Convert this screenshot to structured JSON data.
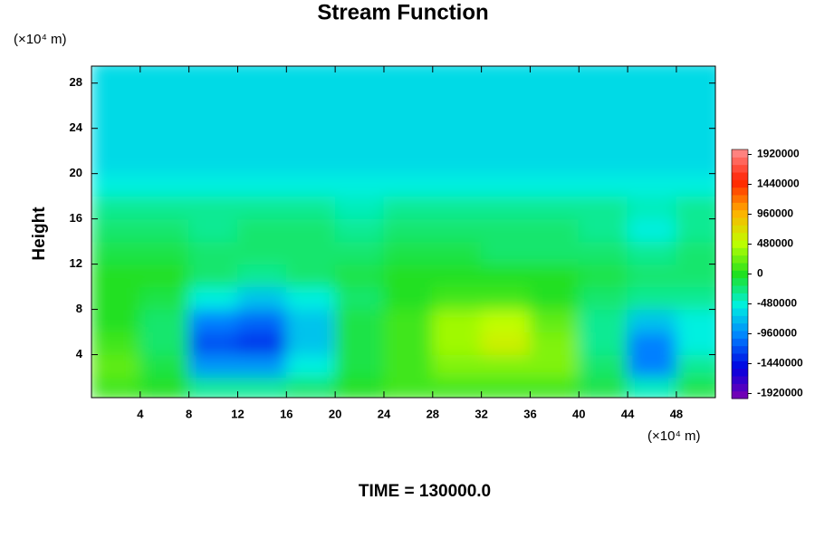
{
  "chart_data": {
    "type": "contour",
    "title": "Stream Function",
    "y_unit": "(×10⁴ m)",
    "x_unit": "(×10⁴ m)",
    "y_label": "Height",
    "footer": "TIME = 130000.0",
    "xlim": [
      0,
      51.2
    ],
    "ylim": [
      0.2,
      29.5
    ],
    "xticks": [
      4,
      8,
      12,
      16,
      20,
      24,
      28,
      32,
      36,
      40,
      44,
      48
    ],
    "yticks": [
      4,
      8,
      12,
      16,
      20,
      24,
      28
    ],
    "x": [
      2,
      6,
      10,
      14,
      18,
      22,
      26,
      30,
      34,
      38,
      42,
      46,
      50
    ],
    "y": [
      1,
      3,
      5,
      7,
      9,
      11,
      13,
      15,
      17,
      19,
      21,
      23,
      25,
      27,
      29
    ],
    "z": [
      [
        100000,
        0,
        -300000,
        -300000,
        -200000,
        0,
        100000,
        100000,
        100000,
        100000,
        -100000,
        -400000,
        -100000
      ],
      [
        200000,
        -100000,
        -900000,
        -900000,
        -500000,
        -100000,
        100000,
        300000,
        300000,
        300000,
        -200000,
        -1000000,
        -300000
      ],
      [
        100000,
        -200000,
        -1200000,
        -1300000,
        -700000,
        -100000,
        100000,
        400000,
        600000,
        300000,
        -300000,
        -1000000,
        -500000
      ],
      [
        0,
        -200000,
        -1000000,
        -1100000,
        -700000,
        -100000,
        100000,
        400000,
        500000,
        200000,
        -300000,
        -700000,
        -500000
      ],
      [
        0,
        -100000,
        -500000,
        -700000,
        -500000,
        -200000,
        0,
        100000,
        100000,
        0,
        -200000,
        -300000,
        -300000
      ],
      [
        0,
        0,
        -200000,
        -300000,
        -200000,
        -100000,
        0,
        0,
        0,
        0,
        -100000,
        -200000,
        -200000
      ],
      [
        -100000,
        -100000,
        -200000,
        -200000,
        -200000,
        -200000,
        -100000,
        -100000,
        -200000,
        -200000,
        -200000,
        -300000,
        -200000
      ],
      [
        -200000,
        -200000,
        -300000,
        -200000,
        -200000,
        -300000,
        -200000,
        -200000,
        -200000,
        -200000,
        -300000,
        -500000,
        -300000
      ],
      [
        -300000,
        -300000,
        -300000,
        -300000,
        -300000,
        -400000,
        -300000,
        -300000,
        -300000,
        -300000,
        -300000,
        -400000,
        -300000
      ],
      [
        -500000,
        -500000,
        -500000,
        -500000,
        -500000,
        -500000,
        -500000,
        -500000,
        -500000,
        -500000,
        -500000,
        -500000,
        -500000
      ],
      [
        -600000,
        -600000,
        -600000,
        -600000,
        -600000,
        -600000,
        -600000,
        -600000,
        -600000,
        -600000,
        -600000,
        -600000,
        -600000
      ],
      [
        -600000,
        -600000,
        -600000,
        -600000,
        -600000,
        -600000,
        -600000,
        -600000,
        -600000,
        -600000,
        -600000,
        -600000,
        -600000
      ],
      [
        -600000,
        -600000,
        -600000,
        -600000,
        -600000,
        -600000,
        -600000,
        -600000,
        -600000,
        -600000,
        -600000,
        -600000,
        -600000
      ],
      [
        -600000,
        -600000,
        -600000,
        -600000,
        -600000,
        -600000,
        -600000,
        -600000,
        -600000,
        -600000,
        -600000,
        -600000,
        -600000
      ],
      [
        -600000,
        -600000,
        -600000,
        -600000,
        -600000,
        -600000,
        -600000,
        -600000,
        -600000,
        -600000,
        -600000,
        -600000,
        -600000
      ]
    ],
    "clim": [
      -2000000,
      2000000
    ],
    "colormap": [
      "#8000b0",
      "#0000e0",
      "#0080ff",
      "#00f0e0",
      "#20e020",
      "#c0ff00",
      "#ffb000",
      "#ff2000",
      "#ff9090"
    ],
    "colorbar_ticks": [
      1920000,
      1440000,
      960000,
      480000,
      0,
      -480000,
      -960000,
      -1440000,
      -1920000
    ]
  }
}
